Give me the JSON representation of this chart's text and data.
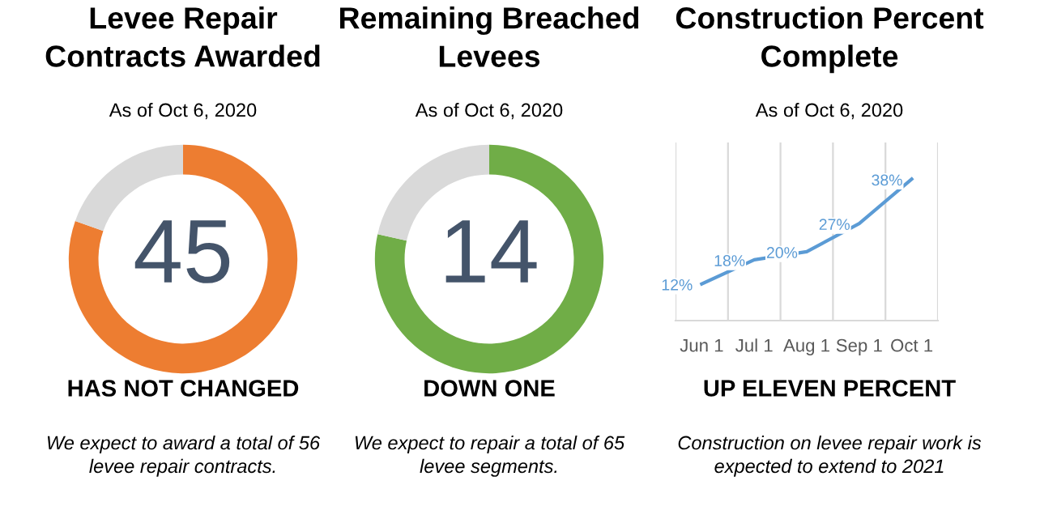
{
  "chart_data": [
    {
      "type": "donut",
      "title": "Levee Repair\nContracts Awarded",
      "subtitle": "As of Oct 6, 2020",
      "categories": [
        null,
        null
      ],
      "values": [
        80.4,
        19.6
      ],
      "colors": [
        "#ed7d31",
        "#d9d9d9"
      ],
      "annotations": [
        "45",
        "HAS NOT CHANGED",
        "We expect to award a total of 56\nlevee repair contracts."
      ]
    },
    {
      "type": "donut",
      "title": "Remaining Breached\nLevees",
      "subtitle": "As of Oct 6, 2020",
      "categories": [
        null,
        null
      ],
      "values": [
        78.5,
        21.5
      ],
      "colors": [
        "#70ad47",
        "#d9d9d9"
      ],
      "annotations": [
        "14",
        "DOWN ONE",
        "We expect to repair a total of 65\nlevee segments."
      ]
    },
    {
      "type": "line",
      "title": "Construction Percent\nComplete",
      "subtitle": "As of Oct 6, 2020",
      "categories": [
        "Jun 1",
        "Jul 1",
        "Aug 1",
        "Sep 1",
        "Oct 1"
      ],
      "grid": "x",
      "tick_labels": "x",
      "series": [
        {
          "color": "#5b9bd5",
          "values": [
            12,
            18,
            20,
            27,
            38
          ],
          "value_labels": [
            "12%",
            "18%",
            "20%",
            "27%",
            "38%"
          ]
        }
      ],
      "annotations": [
        "UP ELEVEN PERCENT",
        "Construction on levee repair work is\nexpected to extend to 2021"
      ]
    }
  ]
}
